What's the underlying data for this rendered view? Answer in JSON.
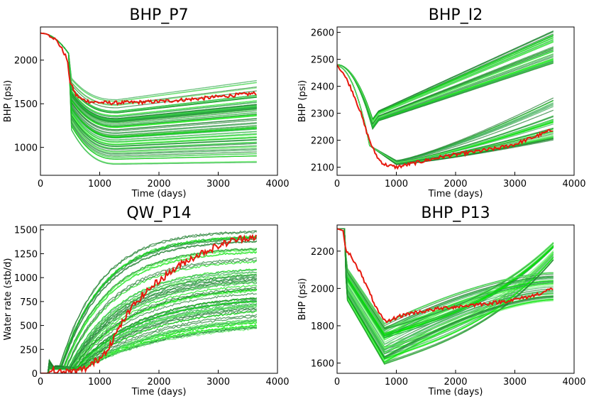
{
  "chart_data": [
    {
      "type": "line",
      "title": "BHP_P7",
      "xlabel": "Time (days)",
      "ylabel": "BHP (psi)",
      "xlim": [
        0,
        4000
      ],
      "ylim": [
        680,
        2380
      ],
      "xticks": [
        0,
        1000,
        2000,
        3000,
        4000
      ],
      "yticks": [
        1000,
        1500,
        2000
      ],
      "ensemble": {
        "count": 80,
        "x_start": 0,
        "x_end": 3650,
        "colors": [
          "#00e600",
          "#2fa84a",
          "#66ee66",
          "#1e7d2e"
        ]
      },
      "observed": {
        "color": "#e6190e",
        "x": [
          0,
          100,
          200,
          300,
          400,
          450,
          500,
          600,
          700,
          800,
          900,
          1000,
          1200,
          1500,
          1800,
          2100,
          2400,
          2700,
          3000,
          3300,
          3650
        ],
        "y": [
          2310,
          2300,
          2270,
          2200,
          2080,
          2010,
          1750,
          1600,
          1550,
          1530,
          1520,
          1515,
          1510,
          1515,
          1520,
          1530,
          1545,
          1560,
          1580,
          1600,
          1620
        ]
      },
      "legend": "none",
      "grid": false
    },
    {
      "type": "line",
      "title": "BHP_I2",
      "xlabel": "Time (days)",
      "ylabel": "BHP (psi)",
      "xlim": [
        0,
        4000
      ],
      "ylim": [
        2070,
        2620
      ],
      "xticks": [
        0,
        1000,
        2000,
        3000,
        4000
      ],
      "yticks": [
        2100,
        2200,
        2300,
        2400,
        2500,
        2600
      ],
      "ensemble": {
        "count": 80,
        "x_start": 0,
        "x_end": 3650,
        "colors": [
          "#00e600",
          "#2fa84a",
          "#66ee66",
          "#1e7d2e"
        ]
      },
      "observed": {
        "color": "#e6190e",
        "x": [
          0,
          50,
          100,
          200,
          300,
          400,
          500,
          600,
          700,
          800,
          900,
          1000,
          1200,
          1500,
          1800,
          2100,
          2400,
          2700,
          3000,
          3300,
          3650
        ],
        "y": [
          2480,
          2460,
          2450,
          2410,
          2360,
          2300,
          2230,
          2170,
          2130,
          2110,
          2105,
          2100,
          2110,
          2125,
          2140,
          2150,
          2160,
          2170,
          2185,
          2210,
          2240
        ]
      },
      "legend": "none",
      "grid": false
    },
    {
      "type": "line",
      "title": "QW_P14",
      "xlabel": "Time (days)",
      "ylabel": "Water rate (stb/d)",
      "xlim": [
        0,
        4000
      ],
      "ylim": [
        0,
        1550
      ],
      "xticks": [
        0,
        1000,
        2000,
        3000,
        4000
      ],
      "yticks": [
        0,
        250,
        500,
        750,
        1000,
        1250,
        1500
      ],
      "ensemble": {
        "count": 80,
        "x_start": 0,
        "x_end": 3650,
        "colors": [
          "#00e600",
          "#2fa84a",
          "#66ee66",
          "#1e7d2e"
        ]
      },
      "observed": {
        "color": "#e6190e",
        "x": [
          0,
          100,
          150,
          200,
          300,
          400,
          500,
          600,
          700,
          800,
          900,
          1000,
          1100,
          1200,
          1300,
          1400,
          1500,
          1600,
          1700,
          1800,
          2000,
          2200,
          2400,
          2600,
          2800,
          3000,
          3200,
          3400,
          3650
        ],
        "y": [
          0,
          0,
          0,
          30,
          10,
          10,
          15,
          20,
          40,
          60,
          110,
          160,
          230,
          330,
          440,
          550,
          650,
          730,
          800,
          860,
          970,
          1060,
          1150,
          1220,
          1280,
          1330,
          1380,
          1410,
          1430
        ]
      },
      "legend": "none",
      "grid": false
    },
    {
      "type": "line",
      "title": "BHP_P13",
      "xlabel": "Time (days)",
      "ylabel": "BHP (psi)",
      "xlim": [
        0,
        4000
      ],
      "ylim": [
        1545,
        2340
      ],
      "xticks": [
        0,
        1000,
        2000,
        3000,
        4000
      ],
      "yticks": [
        1600,
        1800,
        2000,
        2200
      ],
      "ensemble": {
        "count": 80,
        "x_start": 0,
        "x_end": 3650,
        "colors": [
          "#00e600",
          "#2fa84a",
          "#66ee66",
          "#1e7d2e"
        ]
      },
      "observed": {
        "color": "#e6190e",
        "x": [
          0,
          100,
          150,
          200,
          300,
          400,
          500,
          600,
          700,
          800,
          850,
          900,
          1000,
          1200,
          1500,
          1800,
          2100,
          2400,
          2700,
          3000,
          3300,
          3650
        ],
        "y": [
          2320,
          2310,
          2200,
          2190,
          2140,
          2080,
          2010,
          1940,
          1870,
          1825,
          1820,
          1830,
          1845,
          1865,
          1880,
          1895,
          1905,
          1915,
          1925,
          1940,
          1960,
          2000
        ]
      },
      "legend": "none",
      "grid": false
    }
  ]
}
